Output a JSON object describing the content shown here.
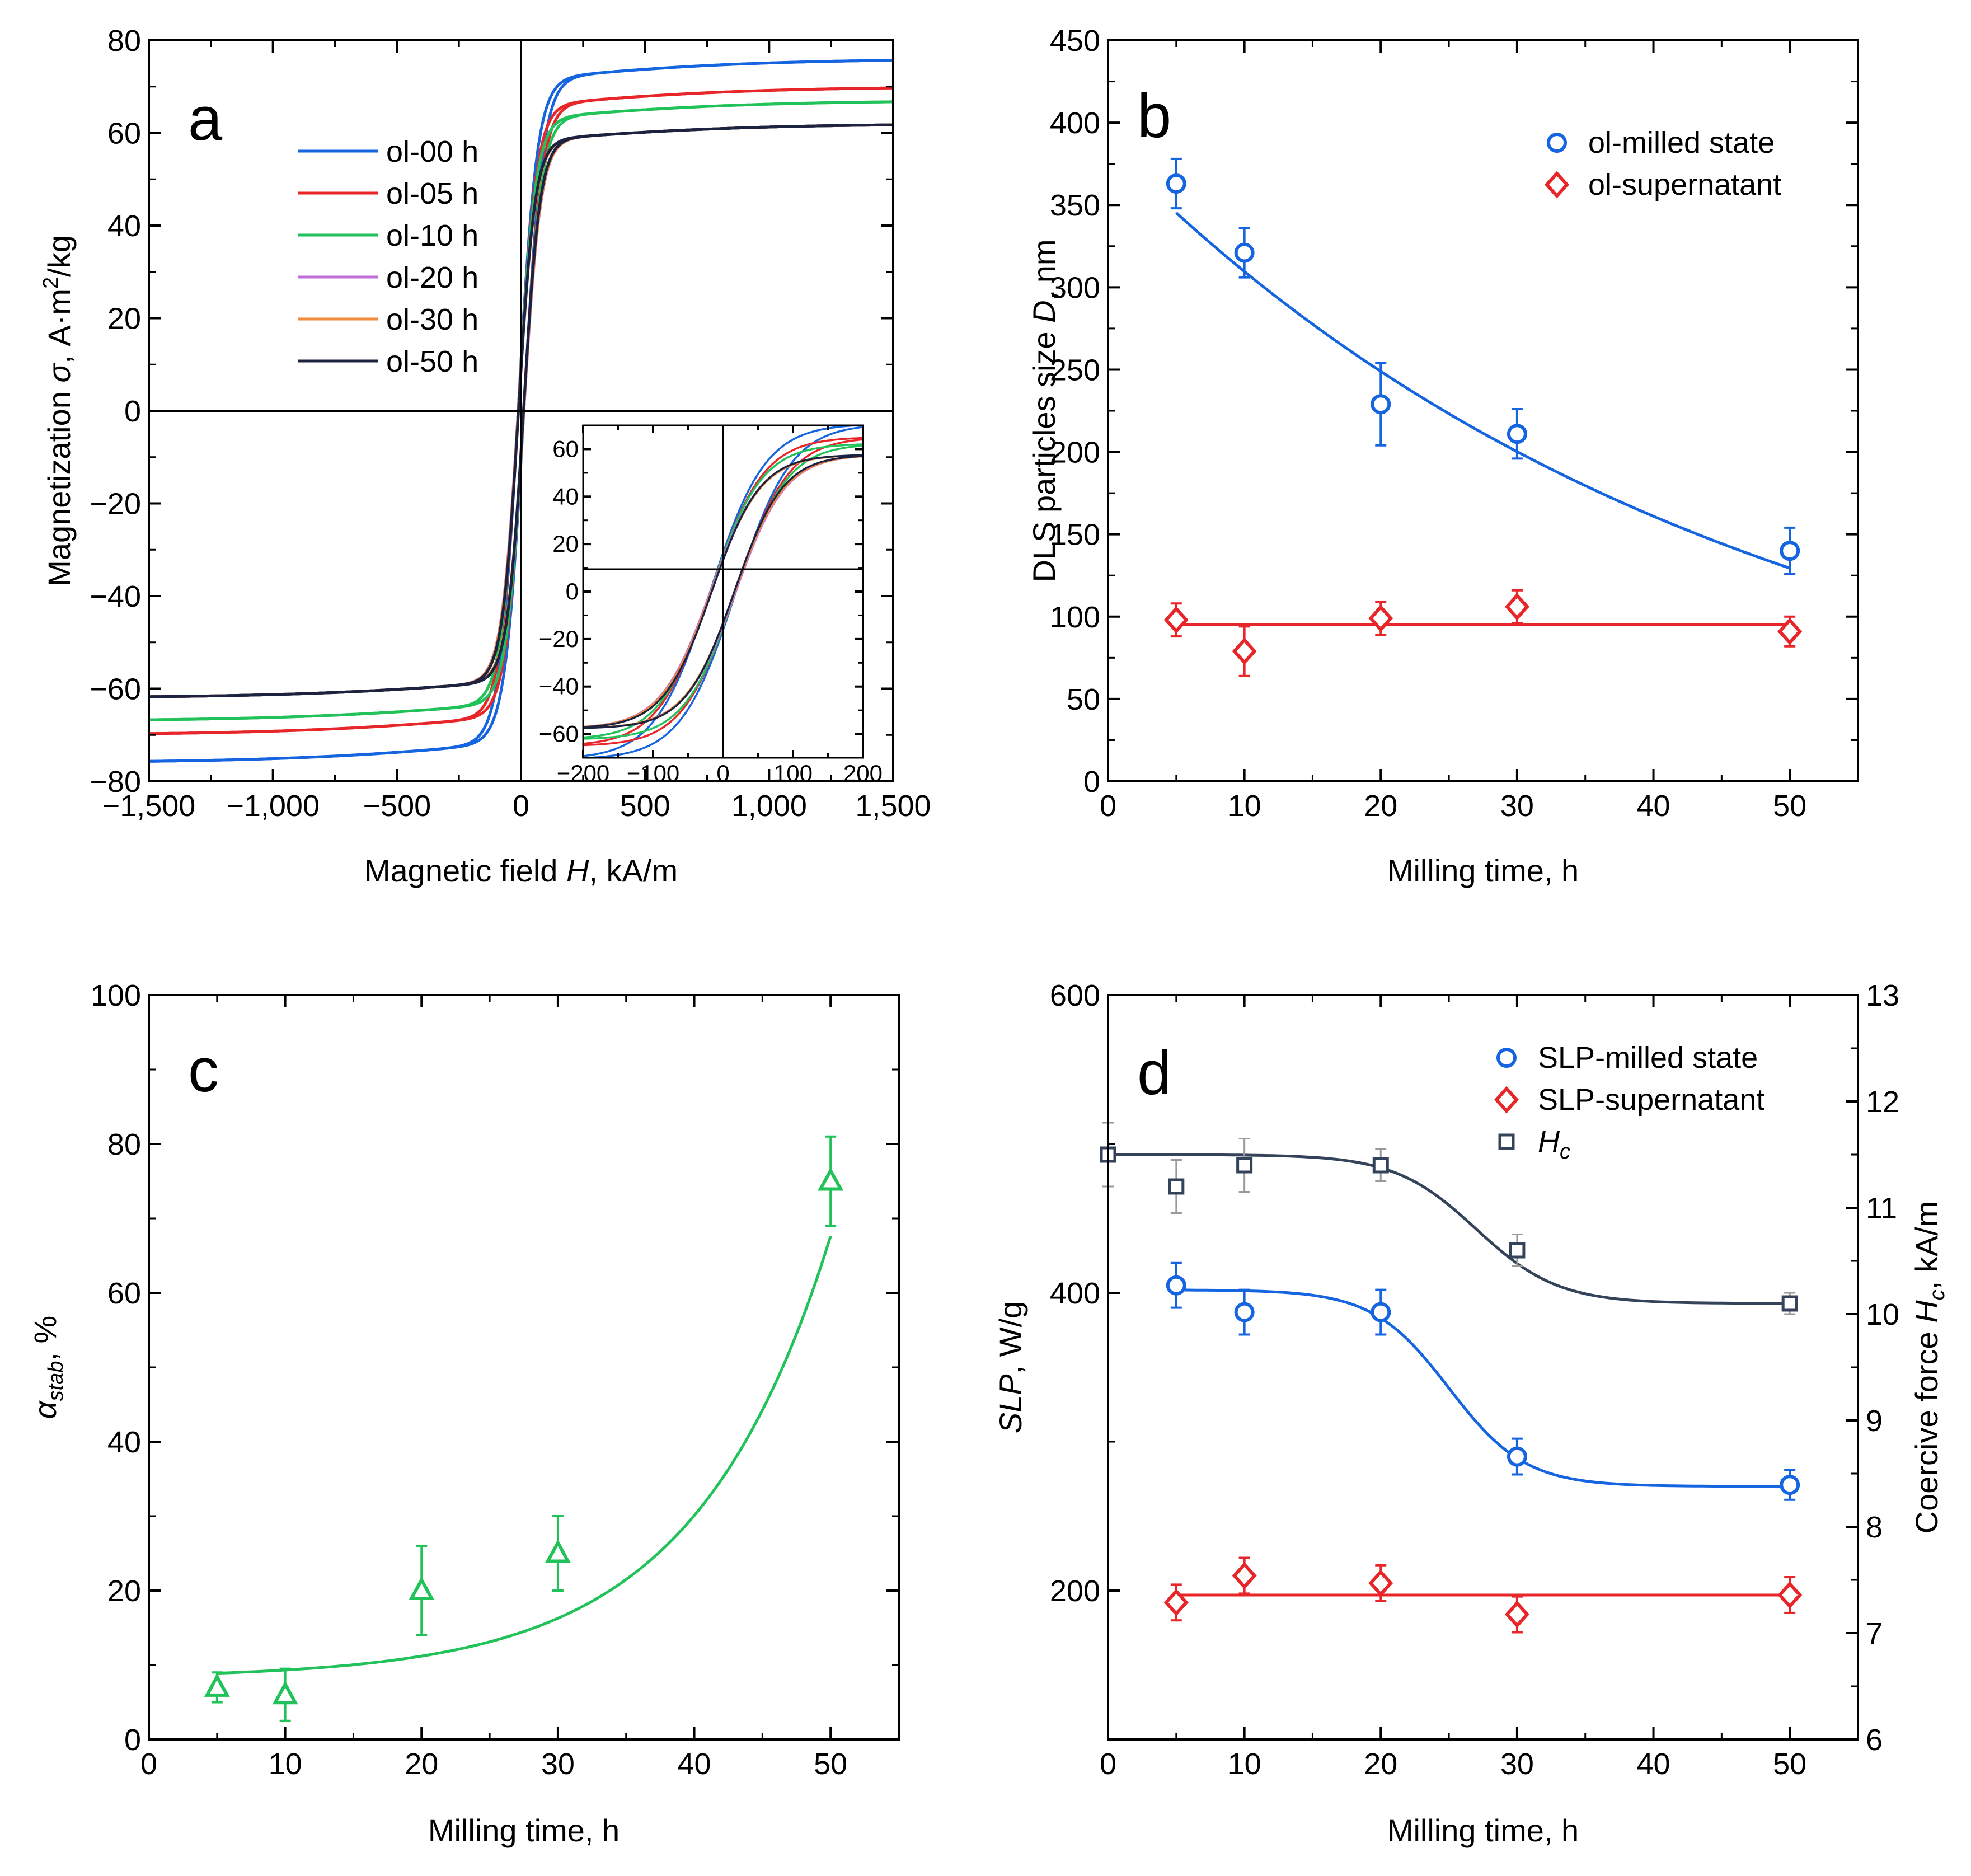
{
  "figure": {
    "colors": {
      "blue": "#1565e0",
      "red": "#e8262a",
      "green": "#22c25a",
      "violet": "#c06fd6",
      "orange": "#f3893a",
      "navy": "#1c2340",
      "slate": "#34425a",
      "gray": "#9a9a9a"
    }
  },
  "chart_data": [
    {
      "panel": "a",
      "type": "line",
      "label": "a",
      "xlabel_pre": "Magnetic field ",
      "xlabel_var": "H",
      "xlabel_post": ", kA/m",
      "ylabel_pre": "Magnetization ",
      "ylabel_var": "σ",
      "ylabel_post": ", A·m",
      "ylabel_sup": "2",
      "ylabel_end": "/kg",
      "xlim": [
        -1500,
        1500
      ],
      "ylim": [
        -80,
        80
      ],
      "xticks": [
        -1500,
        -1000,
        -500,
        0,
        500,
        1000,
        1500
      ],
      "xtick_labels": [
        "−1,500",
        "−1,000",
        "−500",
        "0",
        "500",
        "1,000",
        "1,500"
      ],
      "yticks": [
        -80,
        -60,
        -40,
        -20,
        0,
        20,
        40,
        60,
        80
      ],
      "ytick_labels": [
        "−80",
        "−60",
        "−40",
        "−20",
        "0",
        "20",
        "40",
        "60",
        "80"
      ],
      "series": [
        {
          "name": "ol-00 h",
          "color": "#1565e0",
          "ms": 76,
          "hk": 75,
          "sl": 0.0026
        },
        {
          "name": "ol-05 h",
          "color": "#e8262a",
          "ms": 70,
          "hk": 72,
          "sl": 0.0022
        },
        {
          "name": "ol-10 h",
          "color": "#22c25a",
          "ms": 67,
          "hk": 70,
          "sl": 0.0024
        },
        {
          "name": "ol-20 h",
          "color": "#c06fd6",
          "ms": 62,
          "hk": 68,
          "sl": 0.002
        },
        {
          "name": "ol-30 h",
          "color": "#f3893a",
          "ms": 62,
          "hk": 68,
          "sl": 0.002
        },
        {
          "name": "ol-50 h",
          "color": "#1c2340",
          "ms": 62,
          "hk": 66,
          "sl": 0.0018
        }
      ],
      "inset": {
        "xlim": [
          -200,
          200
        ],
        "ylim": [
          -70,
          70
        ],
        "xticks": [
          -200,
          -100,
          0,
          100,
          200
        ],
        "xtick_labels": [
          "−200",
          "−100",
          "0",
          "100",
          "200"
        ],
        "yticks": [
          -60,
          -40,
          -20,
          0,
          20,
          40,
          60
        ],
        "ytick_labels": [
          "−60",
          "−40",
          "−20",
          "0",
          "20",
          "40",
          "60"
        ],
        "coercivity": [
          11.5,
          11.2,
          11.4,
          11.4,
          10.6,
          10.1
        ]
      }
    },
    {
      "panel": "b",
      "type": "scatter",
      "label": "b",
      "xlabel": "Milling time, h",
      "ylabel_pre": "DLS particles size ",
      "ylabel_var": "D",
      "ylabel_post": ", nm",
      "xlim": [
        0,
        55
      ],
      "ylim": [
        0,
        450
      ],
      "xticks": [
        0,
        10,
        20,
        30,
        40,
        50
      ],
      "xtick_labels": [
        "0",
        "10",
        "20",
        "30",
        "40",
        "50"
      ],
      "yticks": [
        0,
        50,
        100,
        150,
        200,
        250,
        300,
        350,
        400,
        450
      ],
      "ytick_labels": [
        "0",
        "50",
        "100",
        "150",
        "200",
        "250",
        "300",
        "350",
        "400",
        "450"
      ],
      "series": [
        {
          "name": "ol-milled state",
          "marker": "circle",
          "color": "#1565e0",
          "x": [
            5,
            10,
            20,
            30,
            50
          ],
          "y": [
            363,
            321,
            229,
            211,
            140
          ],
          "err": [
            15,
            15,
            25,
            15,
            14
          ],
          "fit": {
            "kind": "exp",
            "a": 385,
            "b": 0.0218
          }
        },
        {
          "name": "ol-supernatant",
          "marker": "diamond",
          "color": "#e8262a",
          "x": [
            5,
            10,
            20,
            30,
            50
          ],
          "y": [
            98,
            79,
            99,
            106,
            91
          ],
          "err": [
            10,
            15,
            10,
            10,
            9
          ],
          "fit": {
            "kind": "const",
            "c": 95
          }
        }
      ]
    },
    {
      "panel": "c",
      "type": "scatter",
      "label": "c",
      "xlabel": "Milling time, h",
      "ylabel_var": "α",
      "ylabel_sub": "stab",
      "ylabel_post": ", %",
      "xlim": [
        0,
        55
      ],
      "ylim": [
        0,
        100
      ],
      "xticks": [
        0,
        10,
        20,
        30,
        40,
        50
      ],
      "xtick_labels": [
        "0",
        "10",
        "20",
        "30",
        "40",
        "50"
      ],
      "yticks": [
        0,
        20,
        40,
        60,
        80,
        100
      ],
      "ytick_labels": [
        "0",
        "20",
        "40",
        "60",
        "80",
        "100"
      ],
      "series": [
        {
          "name": "α_stab",
          "marker": "triangle",
          "color": "#22c25a",
          "x": [
            5,
            10,
            20,
            30,
            50
          ],
          "y": [
            7,
            6,
            20,
            25,
            75
          ],
          "err": [
            2,
            3.5,
            6,
            5,
            6
          ],
          "fit": {
            "kind": "expoffset",
            "c": 8.24,
            "a": 0.4,
            "b": 0.1
          }
        }
      ]
    },
    {
      "panel": "d",
      "type": "scatter",
      "label": "d",
      "xlabel": "Milling time, h",
      "ylabel_var": "SLP",
      "ylabel_post": ", W/g",
      "y2label_pre": "Coercive force ",
      "y2label_var": "H",
      "y2label_sub": "c",
      "y2label_post": ", kA/m",
      "xlim": [
        0,
        55
      ],
      "ylim": [
        100,
        600
      ],
      "y2lim": [
        6,
        13
      ],
      "xticks": [
        0,
        10,
        20,
        30,
        40,
        50
      ],
      "xtick_labels": [
        "0",
        "10",
        "20",
        "30",
        "40",
        "50"
      ],
      "yticks": [
        200,
        400,
        600
      ],
      "ytick_labels": [
        "200",
        "400",
        "600"
      ],
      "y2ticks": [
        6,
        7,
        8,
        9,
        10,
        11,
        12,
        13
      ],
      "y2tick_labels": [
        "6",
        "7",
        "8",
        "9",
        "10",
        "11",
        "12",
        "13"
      ],
      "series": [
        {
          "name": "SLP-milled state",
          "marker": "circle",
          "color": "#1565e0",
          "axis": "left",
          "x": [
            5,
            10,
            20,
            30,
            50
          ],
          "y": [
            405,
            387,
            387,
            290,
            271
          ],
          "err": [
            15,
            15,
            15,
            12,
            10
          ],
          "fit": {
            "kind": "sigmoid",
            "lo": 270,
            "hi": 402,
            "x0": 25,
            "w": 2.8
          }
        },
        {
          "name": "SLP-supernatant",
          "marker": "diamond",
          "color": "#e8262a",
          "axis": "left",
          "x": [
            5,
            10,
            20,
            30,
            50
          ],
          "y": [
            192,
            210,
            205,
            184,
            197
          ],
          "err": [
            12,
            12,
            12,
            12,
            12
          ],
          "fit": {
            "kind": "const",
            "c": 197
          }
        },
        {
          "name": "H",
          "name_sub": "c",
          "marker": "square",
          "color": "#34425a",
          "axis": "right",
          "err_color": "#9a9a9a",
          "x": [
            0,
            5,
            10,
            20,
            30,
            50
          ],
          "y": [
            11.5,
            11.2,
            11.4,
            11.4,
            10.6,
            10.1
          ],
          "err": [
            0.3,
            0.25,
            0.25,
            0.15,
            0.15,
            0.1
          ],
          "fit": {
            "kind": "sigmoid",
            "lo": 10.1,
            "hi": 11.5,
            "x0": 27,
            "w": 3
          }
        }
      ]
    }
  ]
}
